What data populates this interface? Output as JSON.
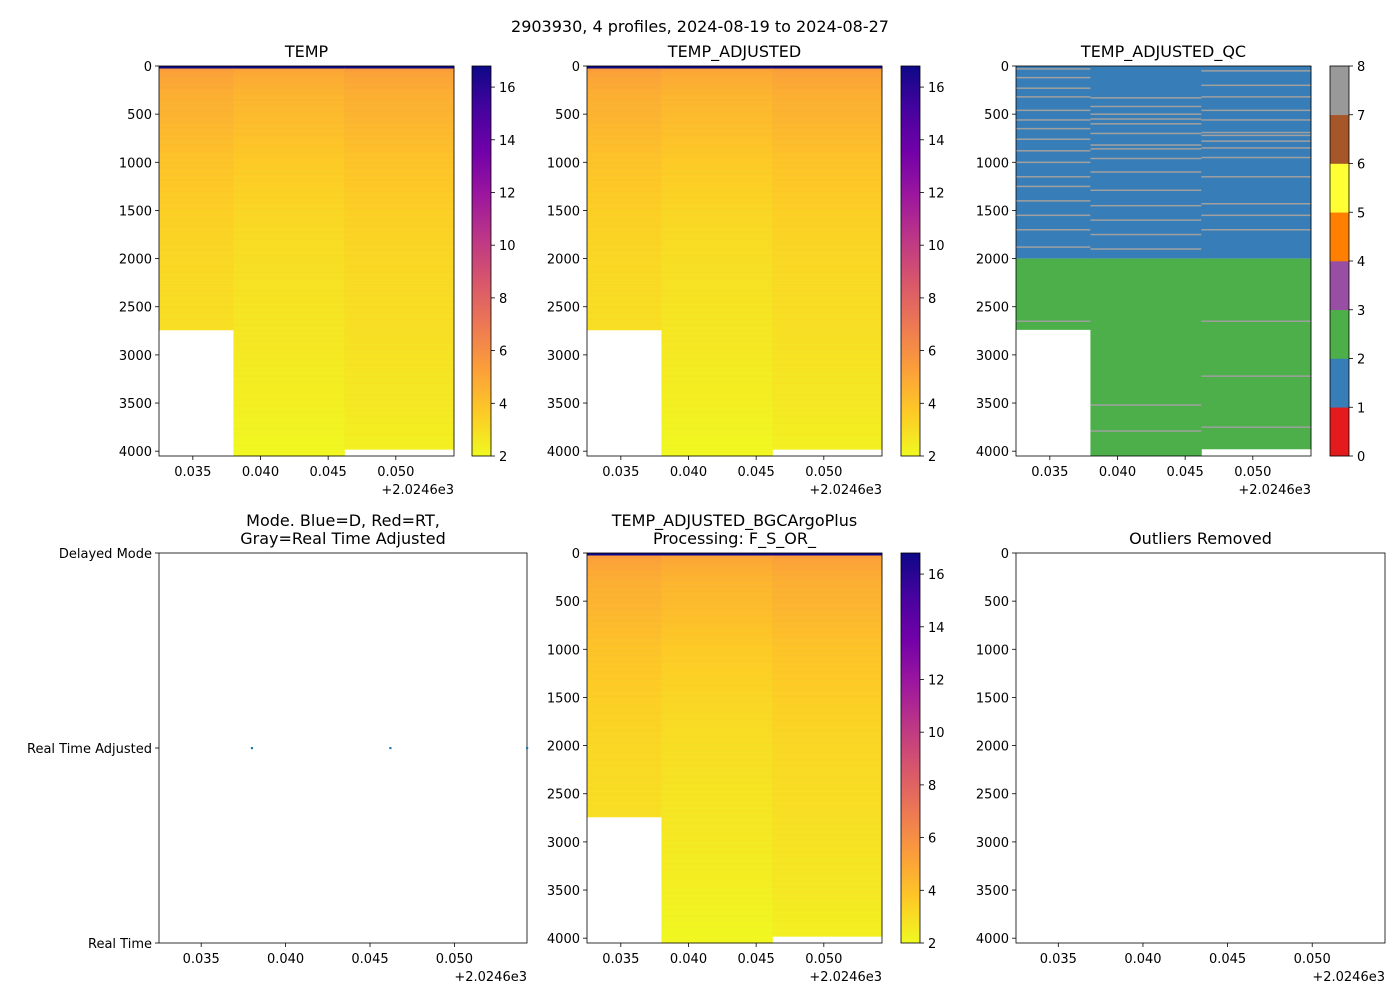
{
  "suptitle": "2903930, 4 profiles, 2024-08-19 to 2024-08-27",
  "colors": {
    "temp_colormap": [
      "#f0f921",
      "#fdca26",
      "#fb9f3a",
      "#ed7953",
      "#d8576b",
      "#bd3786",
      "#9c179e",
      "#7201a8",
      "#46039f",
      "#0d0887"
    ],
    "qc_colors": [
      "#e41a1c",
      "#377eb8",
      "#4daf4a",
      "#984ea3",
      "#ff7f00",
      "#ffff33",
      "#a65628",
      "#f781bf",
      "#999999"
    ],
    "mode_point": "#1f77b4",
    "qc_line": "#a0a0a0"
  },
  "chart_data": [
    {
      "id": "temp",
      "type": "heatmap",
      "title": "TEMP",
      "x_ticks": [
        0.035,
        0.04,
        0.045,
        0.05
      ],
      "x_tick_labels": [
        "0.035",
        "0.040",
        "0.045",
        "0.050"
      ],
      "x_offset_label": "+2.0246e3",
      "xlim": [
        0.0325,
        0.0543
      ],
      "y_ticks": [
        0,
        500,
        1000,
        1500,
        2000,
        2500,
        3000,
        3500,
        4000
      ],
      "y_tick_labels": [
        "0",
        "500",
        "1000",
        "1500",
        "2000",
        "2500",
        "3000",
        "3500",
        "4000"
      ],
      "ylim": [
        4050,
        0
      ],
      "profile_x_edges": [
        0.0325,
        0.038,
        0.0462,
        0.0543
      ],
      "profile_max_depth": [
        2740,
        4050,
        3980
      ],
      "temperature_profile_depth": [
        0,
        30,
        100,
        300,
        600,
        1000,
        1500,
        2000,
        2500,
        3000,
        3500,
        4050
      ],
      "temperature_profile_value": [
        16.8,
        5.3,
        5.0,
        4.6,
        4.3,
        3.8,
        3.4,
        3.1,
        2.9,
        2.7,
        2.5,
        2.2
      ],
      "colorbar": {
        "min": 2,
        "max": 16.8,
        "ticks": [
          2,
          4,
          6,
          8,
          10,
          12,
          14,
          16
        ],
        "tick_labels": [
          "2",
          "4",
          "6",
          "8",
          "10",
          "12",
          "14",
          "16"
        ]
      }
    },
    {
      "id": "temp_adj",
      "type": "heatmap",
      "title": "TEMP_ADJUSTED",
      "x_ticks": [
        0.035,
        0.04,
        0.045,
        0.05
      ],
      "x_tick_labels": [
        "0.035",
        "0.040",
        "0.045",
        "0.050"
      ],
      "x_offset_label": "+2.0246e3",
      "xlim": [
        0.0325,
        0.0543
      ],
      "y_ticks": [
        0,
        500,
        1000,
        1500,
        2000,
        2500,
        3000,
        3500,
        4000
      ],
      "y_tick_labels": [
        "0",
        "500",
        "1000",
        "1500",
        "2000",
        "2500",
        "3000",
        "3500",
        "4000"
      ],
      "ylim": [
        4050,
        0
      ],
      "profile_x_edges": [
        0.0325,
        0.038,
        0.0462,
        0.0543
      ],
      "profile_max_depth": [
        2740,
        4050,
        3980
      ],
      "temperature_profile_depth": [
        0,
        30,
        100,
        300,
        600,
        1000,
        1500,
        2000,
        2500,
        3000,
        3500,
        4050
      ],
      "temperature_profile_value": [
        16.8,
        5.3,
        5.0,
        4.6,
        4.3,
        3.8,
        3.4,
        3.1,
        2.9,
        2.7,
        2.5,
        2.2
      ],
      "colorbar": {
        "min": 2,
        "max": 16.8,
        "ticks": [
          2,
          4,
          6,
          8,
          10,
          12,
          14,
          16
        ],
        "tick_labels": [
          "2",
          "4",
          "6",
          "8",
          "10",
          "12",
          "14",
          "16"
        ]
      }
    },
    {
      "id": "temp_qc",
      "type": "heatmap",
      "title": "TEMP_ADJUSTED_QC",
      "x_ticks": [
        0.035,
        0.04,
        0.045,
        0.05
      ],
      "x_tick_labels": [
        "0.035",
        "0.040",
        "0.045",
        "0.050"
      ],
      "x_offset_label": "+2.0246e3",
      "xlim": [
        0.0325,
        0.0543
      ],
      "y_ticks": [
        0,
        500,
        1000,
        1500,
        2000,
        2500,
        3000,
        3500,
        4000
      ],
      "y_tick_labels": [
        "0",
        "500",
        "1000",
        "1500",
        "2000",
        "2500",
        "3000",
        "3500",
        "4000"
      ],
      "ylim": [
        4050,
        0
      ],
      "profile_x_edges": [
        0.0325,
        0.038,
        0.0462,
        0.0543
      ],
      "profile_max_depth": [
        2740,
        4050,
        3980
      ],
      "qc_flag_change_depth": 2000,
      "qc_flag_upper": 1,
      "qc_flag_lower": 2,
      "qc8_depths": [
        [
          30,
          120,
          230,
          320,
          460,
          560,
          650,
          760,
          880,
          1000,
          1150,
          1250,
          1400,
          1550,
          1700,
          1880,
          2650
        ],
        [
          330,
          420,
          500,
          550,
          600,
          700,
          820,
          860,
          960,
          1100,
          1290,
          1450,
          1600,
          1750,
          1900,
          3520,
          3790
        ],
        [
          50,
          200,
          320,
          460,
          560,
          690,
          720,
          780,
          850,
          950,
          1150,
          1430,
          1550,
          1700,
          2650,
          3220,
          3750
        ]
      ],
      "colorbar": {
        "min": 0,
        "max": 8,
        "ticks": [
          0,
          1,
          2,
          3,
          4,
          5,
          6,
          7,
          8
        ],
        "tick_labels": [
          "0",
          "1",
          "2",
          "3",
          "4",
          "5",
          "6",
          "7",
          "8"
        ]
      }
    },
    {
      "id": "mode",
      "type": "scatter",
      "title_line1": "Mode. Blue=D, Red=RT,",
      "title_line2": "Gray=Real Time Adjusted",
      "x_ticks": [
        0.035,
        0.04,
        0.045,
        0.05
      ],
      "x_tick_labels": [
        "0.035",
        "0.040",
        "0.045",
        "0.050"
      ],
      "x_offset_label": "+2.0246e3",
      "xlim": [
        0.0325,
        0.0543
      ],
      "y_categories": [
        "Delayed Mode",
        "Real Time Adjusted",
        "Real Time"
      ],
      "points": [
        {
          "x": 0.038,
          "y": "Real Time Adjusted"
        },
        {
          "x": 0.0462,
          "y": "Real Time Adjusted"
        },
        {
          "x": 0.0543,
          "y": "Real Time Adjusted"
        }
      ]
    },
    {
      "id": "bgc",
      "type": "heatmap",
      "title_line1": "TEMP_ADJUSTED_BGCArgoPlus",
      "title_line2": "Processing: F_S_OR_",
      "x_ticks": [
        0.035,
        0.04,
        0.045,
        0.05
      ],
      "x_tick_labels": [
        "0.035",
        "0.040",
        "0.045",
        "0.050"
      ],
      "x_offset_label": "+2.0246e3",
      "xlim": [
        0.0325,
        0.0543
      ],
      "y_ticks": [
        0,
        500,
        1000,
        1500,
        2000,
        2500,
        3000,
        3500,
        4000
      ],
      "y_tick_labels": [
        "0",
        "500",
        "1000",
        "1500",
        "2000",
        "2500",
        "3000",
        "3500",
        "4000"
      ],
      "ylim": [
        4050,
        0
      ],
      "profile_x_edges": [
        0.0325,
        0.038,
        0.0462,
        0.0543
      ],
      "profile_max_depth": [
        2740,
        4050,
        3980
      ],
      "temperature_profile_depth": [
        0,
        30,
        100,
        300,
        600,
        1000,
        1500,
        2000,
        2500,
        3000,
        3500,
        4050
      ],
      "temperature_profile_value": [
        16.8,
        5.3,
        5.0,
        4.6,
        4.3,
        3.8,
        3.4,
        3.1,
        2.9,
        2.7,
        2.5,
        2.2
      ],
      "colorbar": {
        "min": 2,
        "max": 16.8,
        "ticks": [
          2,
          4,
          6,
          8,
          10,
          12,
          14,
          16
        ],
        "tick_labels": [
          "2",
          "4",
          "6",
          "8",
          "10",
          "12",
          "14",
          "16"
        ]
      }
    },
    {
      "id": "outliers",
      "type": "scatter",
      "title": "Outliers Removed",
      "x_ticks": [
        0.035,
        0.04,
        0.045,
        0.05
      ],
      "x_tick_labels": [
        "0.035",
        "0.040",
        "0.045",
        "0.050"
      ],
      "x_offset_label": "+2.0246e3",
      "xlim": [
        0.0325,
        0.0543
      ],
      "y_ticks": [
        0,
        500,
        1000,
        1500,
        2000,
        2500,
        3000,
        3500,
        4000
      ],
      "y_tick_labels": [
        "0",
        "500",
        "1000",
        "1500",
        "2000",
        "2500",
        "3000",
        "3500",
        "4000"
      ],
      "ylim": [
        4050,
        0
      ],
      "points": []
    }
  ]
}
